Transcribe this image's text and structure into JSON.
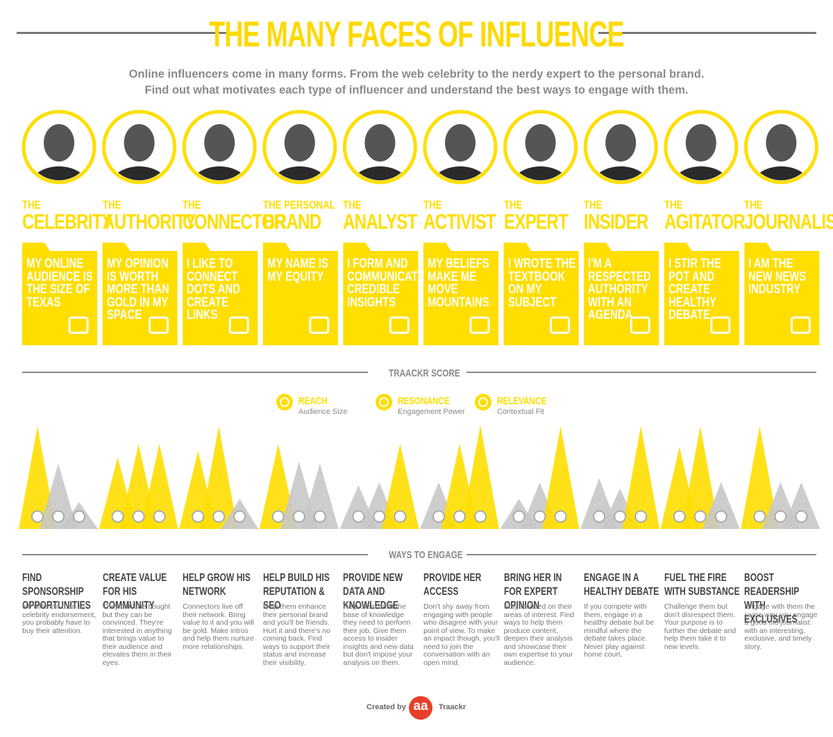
{
  "header": {
    "title": "THE MANY FACES OF INFLUENCE",
    "intro": [
      "Online influencers come in many forms. From the web celebrity to the nerdy expert to the personal brand.",
      "Find out what motivates each type of influencer and understand the best ways to engage with them."
    ]
  },
  "score_section": {
    "title": "TRAACKR SCORE",
    "legend": [
      {
        "title": "REACH",
        "subtitle": "Audience Size"
      },
      {
        "title": "RESONANCE",
        "subtitle": "Engagement Power"
      },
      {
        "title": "RELEVANCE",
        "subtitle": "Contextual Fit"
      }
    ]
  },
  "engage_section": {
    "title": "WAYS TO ENGAGE"
  },
  "colors": {
    "highlight": "#ffde00",
    "muted": "#c8c8c8"
  },
  "profiles": [
    {
      "prefix": "THE",
      "name": "CELEBRITY",
      "quote": "MY ONLINE AUDIENCE IS THE SIZE OF TEXAS",
      "scores": [
        99,
        63,
        26
      ],
      "score_colors": [
        "#ffde00",
        "#c8c8c8",
        "#c8c8c8"
      ],
      "engage_title": "FIND SPONSORSHIP OPPORTUNITIES",
      "engage_text": "No different than a celebrity endorsement, you probably have to buy their attention."
    },
    {
      "prefix": "THE",
      "name": "AUTHORITY",
      "quote": "MY OPINION IS WORTH MORE THAN GOLD IN MY SPACE",
      "scores": [
        69,
        82,
        82
      ],
      "score_colors": [
        "#ffde00",
        "#ffde00",
        "#ffde00"
      ],
      "engage_title": "CREATE VALUE FOR HIS COMMUNITY",
      "engage_text": "They can't be bought but they can be convinced. They're interested in anything that brings value to their audience and elevates them in their eyes."
    },
    {
      "prefix": "THE",
      "name": "CONNECTOR",
      "quote": "I LIKE TO CONNECT DOTS AND CREATE LINKS",
      "scores": [
        75,
        99,
        29
      ],
      "score_colors": [
        "#ffde00",
        "#ffde00",
        "#c8c8c8"
      ],
      "engage_title": "HELP GROW HIS NETWORK",
      "engage_text": "Connectors live off their network. Bring value to it and you will be gold. Make intros and help them nurture more relationships."
    },
    {
      "prefix": "THE PERSONAL",
      "name": "BRAND",
      "quote": "MY NAME IS MY EQUITY",
      "scores": [
        82,
        65,
        63
      ],
      "score_colors": [
        "#ffde00",
        "#c8c8c8",
        "#c8c8c8"
      ],
      "engage_title": "HELP BUILD HIS REPUTATION & SEO",
      "engage_text": "Help them enhance their personal brand and you'll be friends. Hurt it and there's no coming back. Find ways to support their status and increase their visibility."
    },
    {
      "prefix": "THE",
      "name": "ANALYST",
      "quote": "I FORM AND COMMUNICATE CREDIBLE INSIGHTS",
      "scores": [
        42,
        45,
        82
      ],
      "score_colors": [
        "#c8c8c8",
        "#c8c8c8",
        "#ffde00"
      ],
      "engage_title": "PROVIDE NEW DATA AND KNOWLEDGE",
      "engage_text": "Help them build the base of knowledge they need to perform their job. Give them access to insider insights and new data but don't impose your analysis on them."
    },
    {
      "prefix": "THE",
      "name": "ACTIVIST",
      "quote": "MY BELIEFS MAKE ME MOVE MOUNTAINS",
      "scores": [
        45,
        82,
        100
      ],
      "score_colors": [
        "#c8c8c8",
        "#ffde00",
        "#ffde00"
      ],
      "engage_title": "PROVIDE HER ACCESS",
      "engage_text": "Don't shy away from engaging with people who disagree with your point of view. To make an impact though, you'll need to join the conversation with an open mind."
    },
    {
      "prefix": "THE",
      "name": "EXPERT",
      "quote": "I WROTE THE TEXTBOOK ON MY SUBJECT",
      "scores": [
        29,
        45,
        99
      ],
      "score_colors": [
        "#c8c8c8",
        "#c8c8c8",
        "#ffde00"
      ],
      "engage_title": "BRING HER IN FOR EXPERT OPINION",
      "engage_text": "Stay focused on their areas of interest. Find ways to help them produce content, deepen their analysis and showcase their own expertise to your audience."
    },
    {
      "prefix": "THE",
      "name": "INSIDER",
      "quote": "I'M A RESPECTED AUTHORITY WITH AN AGENDA",
      "scores": [
        49,
        39,
        99
      ],
      "score_colors": [
        "#c8c8c8",
        "#c8c8c8",
        "#ffde00"
      ],
      "engage_title": "ENGAGE IN A HEALTHY DEBATE",
      "engage_text": "If you compete with them, engage in a healthy debate but be mindful where the debate takes place. Never play against home court."
    },
    {
      "prefix": "THE",
      "name": "AGITATOR",
      "quote": "I STIR THE POT AND CREATE HEALTHY DEBATE",
      "scores": [
        79,
        99,
        45
      ],
      "score_colors": [
        "#ffde00",
        "#ffde00",
        "#c8c8c8"
      ],
      "engage_title": "FUEL THE FIRE WITH SUBSTANCE",
      "engage_text": "Challenge them but don't disrespect them. Your purpose is to further the debate and help them take it to new levels."
    },
    {
      "prefix": "THE",
      "name": "JOURNALIST",
      "quote": "I AM THE NEW NEWS INDUSTRY",
      "scores": [
        99,
        45,
        45
      ],
      "score_colors": [
        "#ffde00",
        "#c8c8c8",
        "#c8c8c8"
      ],
      "engage_title": "BOOST READERSHIP WITH EXCLUSIVES",
      "engage_text": "Engage with them the same way you engage a good old journalist: with an interesting, exclusive, and timely story."
    }
  ],
  "footer": {
    "created_by": "Created by",
    "logo": "aa",
    "brand": "Traackr"
  }
}
